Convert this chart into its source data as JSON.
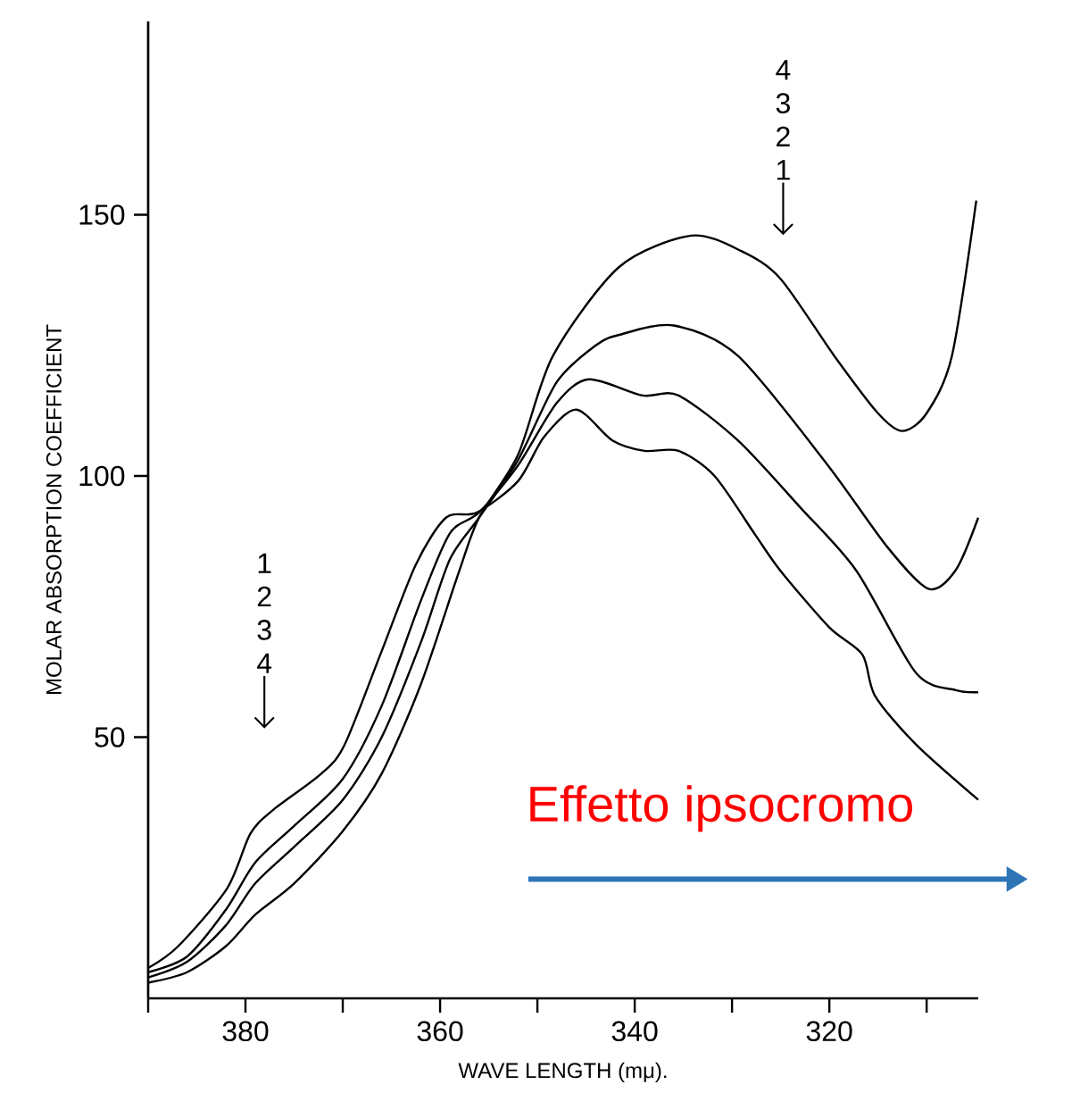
{
  "chart_data": {
    "type": "line",
    "xlabel": "WAVE LENGTH (mμ).",
    "ylabel": "MOLAR ABSORPTION COEFFICIENT",
    "xlim": [
      390,
      304.7
    ],
    "ylim": [
      0,
      187
    ],
    "xticks": [
      {
        "value": 390,
        "label": null
      },
      380,
      {
        "value": 370,
        "label": null
      },
      360,
      {
        "value": 350,
        "label": null
      },
      340,
      {
        "value": 330,
        "label": null
      },
      320,
      {
        "value": 310,
        "label": null
      }
    ],
    "yticks": [
      50,
      100,
      150
    ],
    "marker": "none",
    "line_style": "solid",
    "grid": false,
    "legend": false,
    "series": [
      {
        "color": "#000000",
        "x": [
          390,
          386.9,
          381.9,
          379.5,
          377.2,
          372.2,
          369.8,
          366.1,
          362.5,
          359.4,
          356.2,
          352,
          349.3,
          346,
          342.3,
          339,
          335.5,
          331.8,
          327.6,
          325,
          320,
          316.6,
          315.3,
          311.1,
          304.7
        ],
        "values": [
          5.8,
          10,
          21,
          31.5,
          36,
          43,
          48.6,
          66,
          83,
          92,
          93,
          99,
          107.5,
          112.7,
          106.8,
          104.8,
          104.8,
          100,
          88.7,
          81.8,
          71,
          65.8,
          57.9,
          48.6,
          38
        ]
      },
      {
        "color": "#000000",
        "x": [
          390,
          386,
          382,
          379,
          375,
          370,
          366,
          362,
          359,
          356,
          352,
          348,
          344.7,
          339.2,
          335.5,
          329.4,
          323,
          317.2,
          311.1,
          307,
          304.7
        ],
        "values": [
          5,
          8,
          17,
          26,
          33,
          42,
          56,
          76,
          89,
          93,
          102,
          114,
          118.5,
          115.4,
          115.4,
          106.8,
          94,
          81.8,
          62.3,
          59,
          58.6
        ]
      },
      {
        "color": "#000000",
        "x": [
          390,
          386,
          382,
          379,
          375,
          370,
          366,
          362,
          359,
          356,
          352,
          348,
          344,
          341.6,
          336,
          329.4,
          320.3,
          314,
          309.8,
          307,
          304.7
        ],
        "values": [
          4,
          7,
          14,
          22,
          29,
          38,
          50,
          68,
          84,
          92,
          103,
          118,
          125,
          127,
          128.8,
          123,
          102.4,
          86.3,
          78.4,
          82,
          92
        ]
      },
      {
        "color": "#000000",
        "x": [
          390,
          386,
          382,
          379,
          375,
          370,
          366,
          362,
          358,
          356,
          352,
          348.4,
          341.6,
          334.2,
          329,
          325,
          319.5,
          315,
          312.5,
          310,
          307.4,
          304.9
        ],
        "values": [
          3,
          5,
          10,
          16,
          22,
          32,
          43,
          60,
          82,
          92,
          104,
          123,
          140,
          146,
          143,
          137.7,
          123,
          112,
          108.6,
          112,
          123,
          152.7
        ]
      }
    ],
    "annotations": [
      "1",
      "2",
      "3",
      "4",
      "4",
      "3",
      "2",
      "1",
      "Effetto ipsocromo"
    ]
  }
}
